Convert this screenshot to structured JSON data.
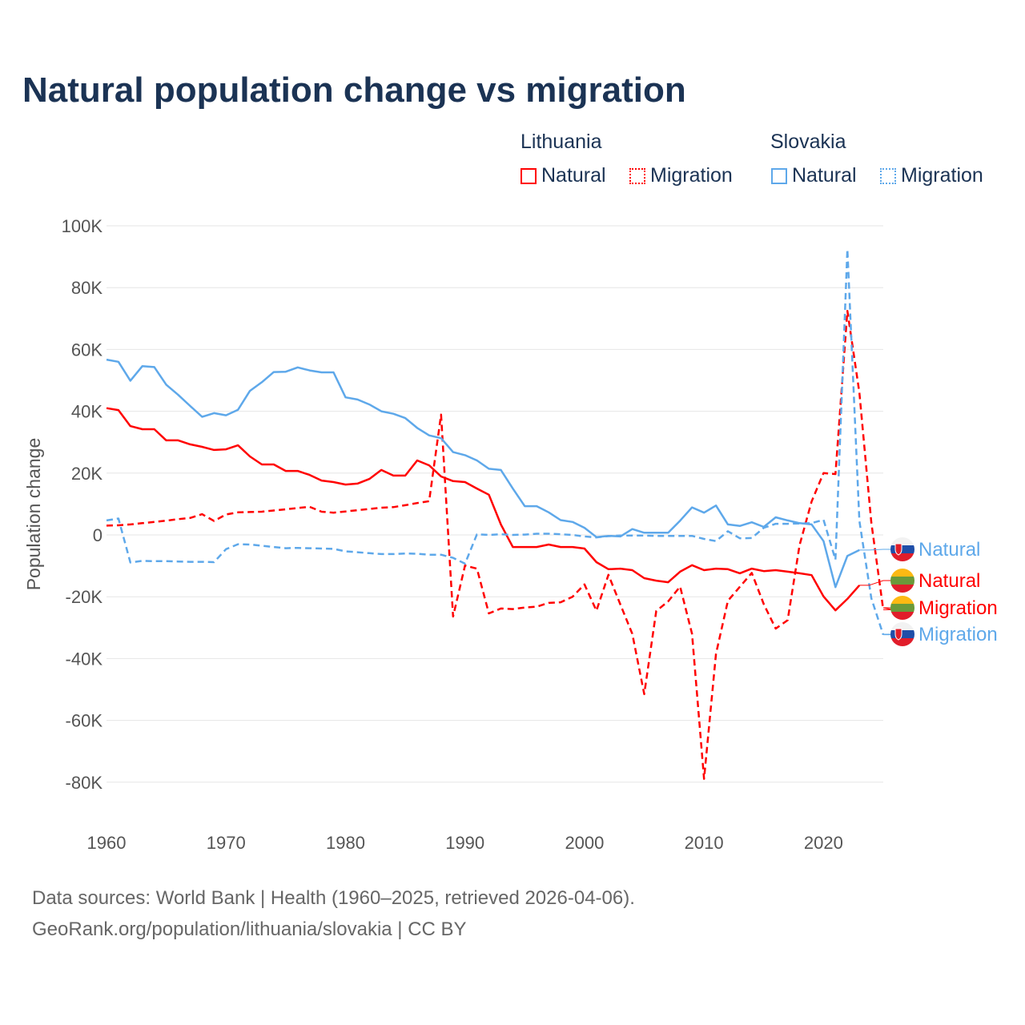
{
  "title": "Natural population change vs migration",
  "legend": {
    "groups": [
      {
        "name": "Lithuania",
        "items": [
          {
            "label": "Natural",
            "style": "solid"
          },
          {
            "label": "Migration",
            "style": "dotted"
          }
        ],
        "color": "#ff0000"
      },
      {
        "name": "Slovakia",
        "items": [
          {
            "label": "Natural",
            "style": "solid"
          },
          {
            "label": "Migration",
            "style": "dotted"
          }
        ],
        "color": "#5ea8ea"
      }
    ]
  },
  "footer": {
    "line1": "Data sources: World Bank | Health (1960–2025, retrieved 2026-04-06).",
    "line2": "GeoRank.org/population/lithuania/slovakia | CC BY"
  },
  "chart_data": {
    "type": "line",
    "title": "Natural population change vs migration",
    "xlabel": "",
    "ylabel": "Population change",
    "xlim": [
      1960,
      2025
    ],
    "ylim": [
      -80000,
      100000
    ],
    "yticks": [
      100000,
      80000,
      60000,
      40000,
      20000,
      0,
      -20000,
      -40000,
      -60000,
      -80000
    ],
    "ytick_labels": [
      "100K",
      "80K",
      "60K",
      "40K",
      "20K",
      "0",
      "-20K",
      "-40K",
      "-60K",
      "-80K"
    ],
    "xticks": [
      1960,
      1970,
      1980,
      1990,
      2000,
      2010,
      2020
    ],
    "xtick_labels": [
      "1960",
      "1970",
      "1980",
      "1990",
      "2000",
      "2010",
      "2020"
    ],
    "grid": true,
    "legend_position": "top-right",
    "series": [
      {
        "name": "Lithuania Natural",
        "end_label": "Natural",
        "country": "Lithuania",
        "color": "#ff0000",
        "dash": false,
        "start": 1960,
        "values_k": [
          41,
          40.4,
          35.2,
          34.2,
          34.2,
          30.6,
          30.6,
          29.3,
          28.5,
          27.5,
          27.7,
          29,
          25.4,
          22.8,
          22.8,
          20.7,
          20.7,
          19.4,
          17.6,
          17.1,
          16.3,
          16.6,
          18.1,
          21,
          19.2,
          19.2,
          24.1,
          22.5,
          18.9,
          17.4,
          17.1,
          15,
          13,
          3.4,
          -3.9,
          -3.9,
          -3.9,
          -3.1,
          -3.9,
          -3.9,
          -4.4,
          -8.8,
          -11.1,
          -10.9,
          -11.4,
          -14,
          -14.8,
          -15.3,
          -11.9,
          -9.8,
          -11.4,
          -10.9,
          -11.1,
          -12.4,
          -10.9,
          -11.7,
          -11.4,
          -11.9,
          -12.4,
          -13,
          -19.9,
          -24.4,
          -20.7,
          -16.3
        ]
      },
      {
        "name": "Lithuania Migration",
        "end_label": "Migration",
        "country": "Lithuania",
        "color": "#ff0000",
        "dash": true,
        "start": 1960,
        "values_k": [
          3,
          3.1,
          3.4,
          3.8,
          4.2,
          4.6,
          5.1,
          5.5,
          6.7,
          4.5,
          6.6,
          7.3,
          7.4,
          7.5,
          7.9,
          8.3,
          8.7,
          9.1,
          7.5,
          7.2,
          7.6,
          8,
          8.4,
          8.8,
          9,
          9.6,
          10.3,
          10.9,
          38.9,
          -26.4,
          -9.9,
          -10.9,
          -25.4,
          -23.8,
          -24,
          -23.5,
          -23.2,
          -22,
          -21.8,
          -20,
          -16,
          -24.5,
          -12.9,
          -22.5,
          -32,
          -51.5,
          -24.6,
          -21.5,
          -16.7,
          -32,
          -78.9,
          -38.5,
          -21.3,
          -16.8,
          -12.3,
          -22.4,
          -30.3,
          -27.6,
          -3.3,
          10.8,
          20,
          19.7,
          72.5,
          46,
          4,
          -24.2
        ]
      },
      {
        "name": "Slovakia Natural",
        "end_label": "Natural",
        "country": "Slovakia",
        "color": "#5ea8ea",
        "dash": false,
        "start": 1960,
        "values_k": [
          56.7,
          56,
          49.9,
          54.6,
          54.3,
          48.6,
          45.3,
          41.7,
          38.2,
          39.4,
          38.7,
          40.5,
          46.6,
          49.4,
          52.7,
          52.8,
          54.2,
          53.2,
          52.6,
          52.6,
          44.5,
          43.8,
          42.2,
          40,
          39.2,
          37.8,
          34.6,
          32.2,
          31.3,
          26.8,
          25.8,
          24.1,
          21.4,
          21,
          15,
          9.3,
          9.3,
          7.3,
          4.8,
          4.2,
          2.3,
          -0.7,
          -0.3,
          -0.5,
          1.9,
          0.7,
          0.7,
          0.7,
          4.6,
          8.9,
          7.2,
          9.5,
          3.4,
          2.9,
          4.1,
          2.6,
          5.7,
          4.7,
          3.8,
          3.4,
          -2,
          -16.9,
          -6.8,
          -4.9
        ]
      },
      {
        "name": "Slovakia Migration",
        "end_label": "Migration",
        "country": "Slovakia",
        "color": "#5ea8ea",
        "dash": true,
        "start": 1960,
        "values_k": [
          4.7,
          5.3,
          -8.9,
          -8.4,
          -8.5,
          -8.5,
          -8.6,
          -8.7,
          -8.7,
          -8.8,
          -4.6,
          -3,
          -3.1,
          -3.5,
          -3.9,
          -4.3,
          -4.2,
          -4.3,
          -4.4,
          -4.5,
          -5.3,
          -5.6,
          -5.9,
          -6.2,
          -6.2,
          -6,
          -6.1,
          -6.4,
          -6.4,
          -7.4,
          -9.3,
          0.2,
          0,
          0.2,
          0,
          0.1,
          0.4,
          0.4,
          0.2,
          0,
          -0.5,
          -0.8,
          -0.4,
          -0.2,
          -0.2,
          -0.2,
          -0.3,
          -0.3,
          -0.3,
          -0.3,
          -1.3,
          -2,
          1.2,
          -1.1,
          -1,
          2.3,
          3.6,
          3.6,
          3.7,
          3.8,
          4.9,
          -8,
          92.4,
          4.5,
          -20.5,
          -32.3
        ]
      }
    ]
  }
}
